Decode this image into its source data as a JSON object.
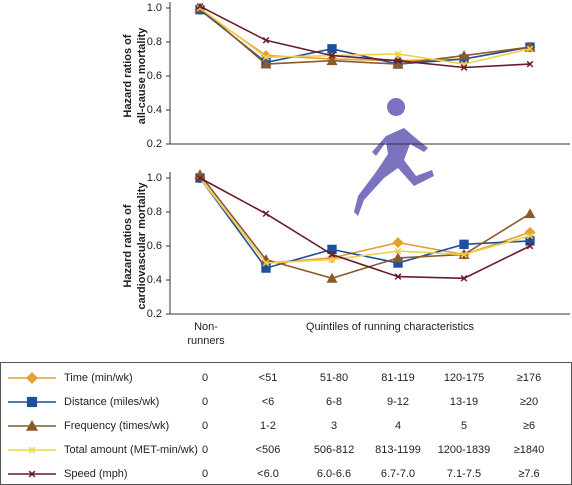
{
  "chart_data": [
    {
      "type": "line",
      "ylabel": [
        "Hazard ratios of",
        "all-cause mortality"
      ],
      "categories": [
        null,
        null,
        null,
        null,
        null,
        null
      ],
      "ylim": [
        0.2,
        1.0
      ],
      "yticks": [
        0.2,
        0.4,
        0.6,
        0.8,
        {
          "value": 1.0,
          "label": "1.0"
        }
      ],
      "series": [
        {
          "name": "Time (min/wk)",
          "color": "#e3a033",
          "marker": "diamond",
          "values": [
            0.99,
            0.72,
            0.7,
            0.69,
            0.7,
            0.77
          ],
          "levels": [
            "0",
            "<51",
            "51-80",
            "81-119",
            "120-175",
            "≥176"
          ]
        },
        {
          "name": "Distance (miles/wk)",
          "color": "#1f4e9c",
          "marker": "square",
          "values": [
            0.99,
            0.68,
            0.76,
            0.67,
            0.7,
            0.77
          ],
          "levels": [
            "0",
            "<6",
            "6-8",
            "9-12",
            "13-19",
            "≥20"
          ]
        },
        {
          "name": "Frequency (times/wk)",
          "color": "#8b5a2b",
          "marker": "triangle",
          "values": [
            1.0,
            0.67,
            0.69,
            0.67,
            0.72,
            0.77
          ],
          "levels": [
            "0",
            "1-2",
            "3",
            "4",
            "5",
            "≥6"
          ]
        },
        {
          "name": "Total amount (MET-min/wk)",
          "color": "#f2d04a",
          "marker": "x",
          "values": [
            1.0,
            0.71,
            0.72,
            0.73,
            0.67,
            0.76
          ],
          "levels": [
            "0",
            "<506",
            "506-812",
            "813-1199",
            "1200-1839",
            "≥1840"
          ]
        },
        {
          "name": "Speed (mph)",
          "color": "#6b1a2a",
          "marker": "x",
          "values": [
            1.01,
            0.81,
            0.72,
            0.69,
            0.65,
            0.67
          ],
          "levels": [
            "0",
            "<6.0",
            "6.0-6.6",
            "6.7-7.0",
            "7.1-7.5",
            "≥7.6"
          ]
        }
      ]
    },
    {
      "type": "line",
      "ylabel": [
        "Hazard ratios of",
        "cardiovascular mortality"
      ],
      "xlabel": "Quintiles of running characteristics",
      "categories": [
        "Non-runners",
        null,
        null,
        null,
        null,
        null
      ],
      "ylim": [
        0.2,
        1.0
      ],
      "yticks": [
        0.2,
        0.4,
        0.6,
        0.8,
        {
          "value": 1.0,
          "label": "1.0"
        }
      ],
      "series": [
        {
          "color": "#e3a033",
          "marker": "diamond",
          "values": [
            1.0,
            0.5,
            0.53,
            0.62,
            0.55,
            0.68
          ]
        },
        {
          "color": "#1f4e9c",
          "marker": "square",
          "values": [
            1.0,
            0.47,
            0.58,
            0.5,
            0.61,
            0.63
          ]
        },
        {
          "color": "#8b5a2b",
          "marker": "triangle",
          "values": [
            1.02,
            0.52,
            0.41,
            0.53,
            0.55,
            0.79
          ]
        },
        {
          "color": "#f2d04a",
          "marker": "x",
          "values": [
            1.0,
            0.5,
            0.52,
            0.57,
            0.55,
            0.66
          ]
        },
        {
          "color": "#6b1a2a",
          "marker": "x",
          "values": [
            1.0,
            0.79,
            0.55,
            0.42,
            0.41,
            0.6
          ]
        }
      ]
    }
  ]
}
